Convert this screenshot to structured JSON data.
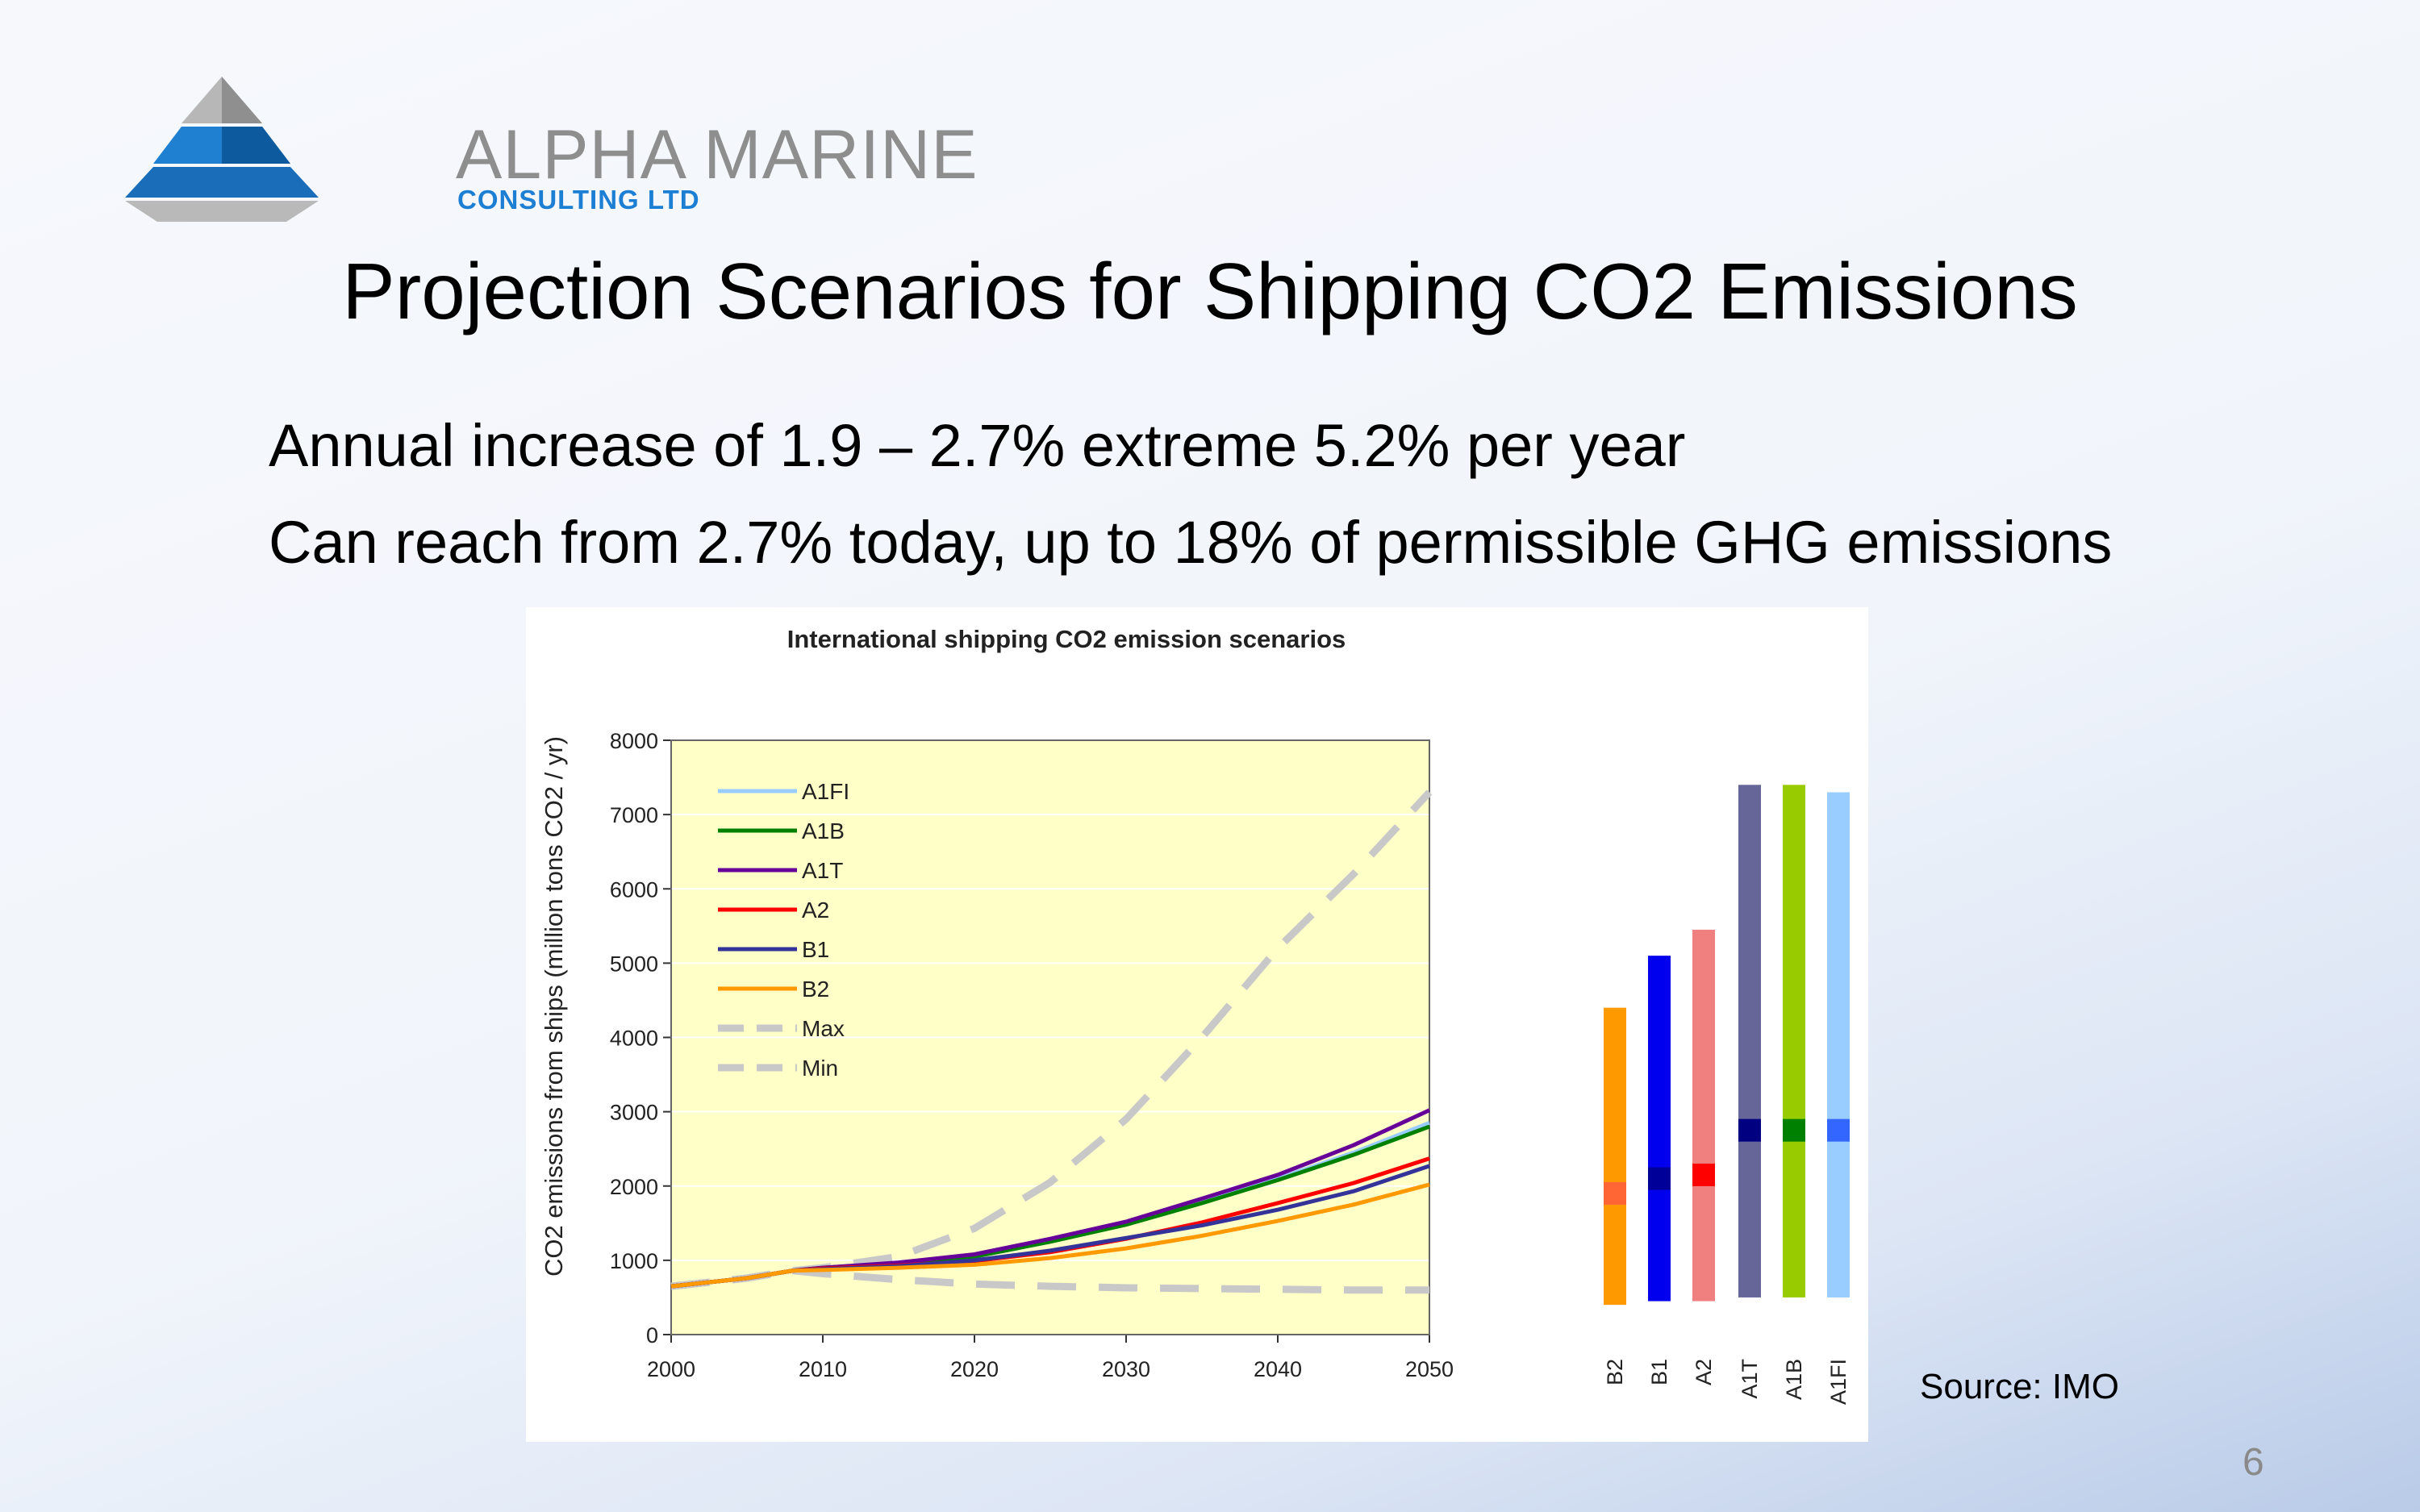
{
  "logo": {
    "name": "ALPHA MARINE",
    "subtitle": "CONSULTING LTD",
    "colors": {
      "blue": "#1c7fd4",
      "grey": "#8e8e8e"
    }
  },
  "slide": {
    "title": "Projection Scenarios for Shipping CO2 Emissions",
    "bullets": [
      "Annual increase of 1.9 – 2.7% extreme 5.2% per year",
      "Can reach from 2.7% today, up to 18% of permissible GHG emissions"
    ],
    "source": "Source: IMO",
    "page_number": "6"
  },
  "chart_data": [
    {
      "type": "line",
      "title": "International shipping CO2 emission scenarios",
      "xlabel": "",
      "ylabel": "CO2 emissions from ships (million tons CO2 / yr)",
      "xlim": [
        2000,
        2050
      ],
      "ylim": [
        0,
        8000
      ],
      "xticks": [
        2000,
        2010,
        2020,
        2030,
        2040,
        2050
      ],
      "yticks": [
        0,
        1000,
        2000,
        3000,
        4000,
        5000,
        6000,
        7000,
        8000
      ],
      "grid": true,
      "legend": "top-left",
      "background": "#ffffc8",
      "x": [
        2000,
        2005,
        2008,
        2010,
        2015,
        2020,
        2025,
        2030,
        2035,
        2040,
        2045,
        2050
      ],
      "series": [
        {
          "name": "A1FI",
          "color": "#99ccff",
          "dashed": false,
          "values": [
            650,
            760,
            860,
            900,
            960,
            1050,
            1250,
            1500,
            1800,
            2100,
            2450,
            2850
          ]
        },
        {
          "name": "A1B",
          "color": "#008000",
          "dashed": false,
          "values": [
            650,
            760,
            860,
            900,
            960,
            1050,
            1250,
            1480,
            1770,
            2080,
            2420,
            2800
          ]
        },
        {
          "name": "A1T",
          "color": "#660099",
          "dashed": false,
          "values": [
            650,
            760,
            860,
            900,
            970,
            1080,
            1290,
            1520,
            1830,
            2150,
            2550,
            3020
          ]
        },
        {
          "name": "A2",
          "color": "#ff0000",
          "dashed": false,
          "values": [
            650,
            760,
            860,
            890,
            930,
            990,
            1110,
            1290,
            1510,
            1770,
            2040,
            2370
          ]
        },
        {
          "name": "B1",
          "color": "#333399",
          "dashed": false,
          "values": [
            650,
            760,
            860,
            880,
            920,
            1000,
            1130,
            1300,
            1470,
            1680,
            1930,
            2270
          ]
        },
        {
          "name": "B2",
          "color": "#ff9900",
          "dashed": false,
          "values": [
            650,
            760,
            860,
            870,
            900,
            940,
            1030,
            1160,
            1330,
            1530,
            1750,
            2020
          ]
        },
        {
          "name": "Max",
          "color": "#c8c8c8",
          "dashed": true,
          "values": [
            650,
            760,
            860,
            900,
            1050,
            1430,
            2050,
            2900,
            4000,
            5200,
            6200,
            7300
          ]
        },
        {
          "name": "Min",
          "color": "#c8c8c8",
          "dashed": true,
          "values": [
            650,
            760,
            860,
            820,
            740,
            680,
            650,
            630,
            620,
            610,
            600,
            600
          ]
        }
      ]
    },
    {
      "type": "bar",
      "title": "",
      "categories": [
        "B2",
        "B1",
        "A2",
        "A1T",
        "A1B",
        "A1FI"
      ],
      "ranges": [
        {
          "category": "B2",
          "low": 400,
          "high": 4400,
          "marker": 1900,
          "color": "#ff9900",
          "marker_color": "#ff6633"
        },
        {
          "category": "B1",
          "low": 450,
          "high": 5100,
          "marker": 2100,
          "color": "#0000ee",
          "marker_color": "#000099"
        },
        {
          "category": "A2",
          "low": 450,
          "high": 5450,
          "marker": 2150,
          "color": "#f08080",
          "marker_color": "#ff0000"
        },
        {
          "category": "A1T",
          "low": 500,
          "high": 7400,
          "marker": 2750,
          "color": "#666699",
          "marker_color": "#000080"
        },
        {
          "category": "A1B",
          "low": 500,
          "high": 7400,
          "marker": 2750,
          "color": "#99cc00",
          "marker_color": "#008000"
        },
        {
          "category": "A1FI",
          "low": 500,
          "high": 7300,
          "marker": 2750,
          "color": "#99ccff",
          "marker_color": "#3366ff"
        }
      ]
    }
  ]
}
